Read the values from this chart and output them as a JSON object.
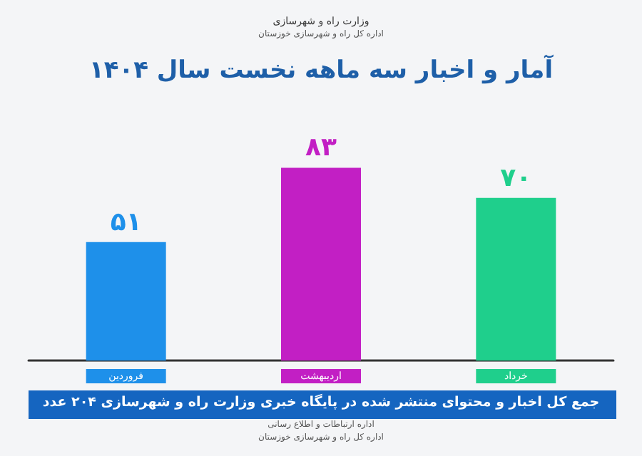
{
  "chart_data": {
    "type": "bar",
    "title": "آمار و اخبار سه ماهه نخست سال ۱۴۰۴",
    "categories": [
      "فروردین",
      "اردیبهشت",
      "خرداد"
    ],
    "values": [
      51,
      83,
      70
    ],
    "value_labels": [
      "۵۱",
      "۸۳",
      "۷۰"
    ],
    "colors": [
      "#1e90ea",
      "#c21fc4",
      "#1fcf8c"
    ],
    "annotations": [
      "وزارت راه و شهرسازی",
      "اداره کل راه و شهرسازی خوزستان",
      "جمع کل اخبار و محتوای منتشر شده در پایگاه خبری وزارت راه و شهرسازی ۲۰۴ عدد",
      "اداره ارتباطات و اطلاع رسانی",
      "اداره کل راه و شهرسازی خوزستان"
    ]
  }
}
